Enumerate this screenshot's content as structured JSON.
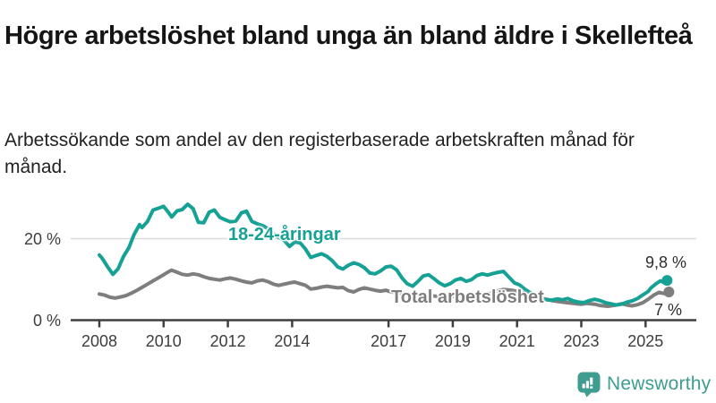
{
  "header": {
    "title": "Högre arbetslöshet bland unga än bland äldre i Skellefteå",
    "subtitle": "Arbetssökande som andel av den registerbaserade arbetskraften månad för månad."
  },
  "chart_data": {
    "type": "line",
    "unit": "%",
    "grid": "single horizontal gridline at 20 %",
    "legend_position": "inline labels on lines",
    "x_axis": {
      "ticks": [
        "2008",
        "2010",
        "2012",
        "2014",
        "2017",
        "2019",
        "2021",
        "2023",
        "2025"
      ],
      "range": [
        2007.1,
        2026.6
      ]
    },
    "y_axis": {
      "ticks": [
        {
          "value": 20,
          "label": "20 %"
        },
        {
          "value": 0,
          "label": "0 %"
        }
      ],
      "range": [
        0,
        30
      ]
    },
    "series": [
      {
        "name": "Total arbetslöshet",
        "color": "#7e7e7e",
        "end_label": "7 %",
        "end_value": 7.0,
        "points": [
          [
            2008.0,
            6.5
          ],
          [
            2008.17,
            6.2
          ],
          [
            2008.33,
            5.7
          ],
          [
            2008.5,
            5.5
          ],
          [
            2008.67,
            5.8
          ],
          [
            2008.83,
            6.1
          ],
          [
            2009.0,
            6.7
          ],
          [
            2009.17,
            7.4
          ],
          [
            2009.33,
            8.1
          ],
          [
            2009.5,
            8.9
          ],
          [
            2009.67,
            9.7
          ],
          [
            2009.83,
            10.4
          ],
          [
            2010.0,
            11.2
          ],
          [
            2010.17,
            12.0
          ],
          [
            2010.25,
            12.3
          ],
          [
            2010.42,
            11.8
          ],
          [
            2010.58,
            11.3
          ],
          [
            2010.75,
            11.1
          ],
          [
            2010.92,
            11.4
          ],
          [
            2011.08,
            11.2
          ],
          [
            2011.25,
            10.7
          ],
          [
            2011.42,
            10.3
          ],
          [
            2011.58,
            10.1
          ],
          [
            2011.75,
            9.9
          ],
          [
            2011.92,
            10.2
          ],
          [
            2012.08,
            10.4
          ],
          [
            2012.25,
            10.1
          ],
          [
            2012.42,
            9.7
          ],
          [
            2012.58,
            9.4
          ],
          [
            2012.75,
            9.2
          ],
          [
            2012.92,
            9.7
          ],
          [
            2013.08,
            9.9
          ],
          [
            2013.25,
            9.5
          ],
          [
            2013.42,
            8.9
          ],
          [
            2013.58,
            8.6
          ],
          [
            2013.75,
            8.9
          ],
          [
            2013.92,
            9.2
          ],
          [
            2014.08,
            9.4
          ],
          [
            2014.25,
            9.0
          ],
          [
            2014.42,
            8.6
          ],
          [
            2014.58,
            7.7
          ],
          [
            2014.75,
            7.9
          ],
          [
            2014.92,
            8.2
          ],
          [
            2015.08,
            8.4
          ],
          [
            2015.25,
            8.2
          ],
          [
            2015.42,
            8.0
          ],
          [
            2015.58,
            8.1
          ],
          [
            2015.75,
            7.3
          ],
          [
            2015.92,
            7.0
          ],
          [
            2016.08,
            7.6
          ],
          [
            2016.25,
            8.0
          ],
          [
            2016.42,
            7.7
          ],
          [
            2016.58,
            7.4
          ],
          [
            2016.75,
            7.2
          ],
          [
            2016.92,
            7.4
          ],
          [
            2017.08,
            7.0
          ],
          [
            2017.33,
            6.7
          ],
          [
            2017.58,
            6.4
          ],
          [
            2017.83,
            6.3
          ],
          [
            2018.08,
            6.4
          ],
          [
            2018.42,
            6.0
          ],
          [
            2018.75,
            5.8
          ],
          [
            2019.08,
            5.9
          ],
          [
            2019.42,
            5.7
          ],
          [
            2019.75,
            5.9
          ],
          [
            2020.08,
            6.4
          ],
          [
            2020.33,
            7.1
          ],
          [
            2020.58,
            7.6
          ],
          [
            2020.83,
            7.4
          ],
          [
            2021.08,
            7.0
          ],
          [
            2021.42,
            6.2
          ],
          [
            2021.75,
            5.5
          ],
          [
            2022.08,
            4.9
          ],
          [
            2022.42,
            4.5
          ],
          [
            2022.75,
            4.2
          ],
          [
            2023.0,
            4.0
          ],
          [
            2023.17,
            4.2
          ],
          [
            2023.42,
            4.0
          ],
          [
            2023.58,
            3.7
          ],
          [
            2023.83,
            3.5
          ],
          [
            2024.08,
            3.8
          ],
          [
            2024.25,
            4.1
          ],
          [
            2024.42,
            3.8
          ],
          [
            2024.58,
            3.6
          ],
          [
            2024.75,
            3.9
          ],
          [
            2024.92,
            4.4
          ],
          [
            2025.08,
            5.2
          ],
          [
            2025.25,
            6.2
          ],
          [
            2025.42,
            6.9
          ],
          [
            2025.58,
            6.6
          ],
          [
            2025.67,
            7.0
          ]
        ]
      },
      {
        "name": "18-24-åringar",
        "color": "#16a195",
        "end_label": "9,8 %",
        "end_value": 9.8,
        "points": [
          [
            2008.0,
            16.0
          ],
          [
            2008.08,
            15.3
          ],
          [
            2008.25,
            13.2
          ],
          [
            2008.42,
            11.3
          ],
          [
            2008.58,
            12.6
          ],
          [
            2008.75,
            15.6
          ],
          [
            2008.92,
            17.8
          ],
          [
            2009.08,
            21.0
          ],
          [
            2009.25,
            23.4
          ],
          [
            2009.33,
            22.7
          ],
          [
            2009.5,
            24.2
          ],
          [
            2009.67,
            27.0
          ],
          [
            2009.83,
            27.4
          ],
          [
            2010.0,
            27.9
          ],
          [
            2010.17,
            26.2
          ],
          [
            2010.25,
            25.3
          ],
          [
            2010.42,
            26.8
          ],
          [
            2010.58,
            27.1
          ],
          [
            2010.75,
            28.4
          ],
          [
            2010.92,
            27.3
          ],
          [
            2011.08,
            24.0
          ],
          [
            2011.25,
            23.9
          ],
          [
            2011.42,
            26.5
          ],
          [
            2011.58,
            27.0
          ],
          [
            2011.75,
            25.2
          ],
          [
            2011.92,
            24.6
          ],
          [
            2012.08,
            24.1
          ],
          [
            2012.25,
            24.3
          ],
          [
            2012.42,
            26.3
          ],
          [
            2012.58,
            26.7
          ],
          [
            2012.75,
            24.2
          ],
          [
            2012.92,
            23.6
          ],
          [
            2013.08,
            23.2
          ],
          [
            2013.25,
            22.4
          ],
          [
            2013.42,
            21.2
          ],
          [
            2013.58,
            20.3
          ],
          [
            2013.75,
            19.6
          ],
          [
            2013.92,
            18.1
          ],
          [
            2014.08,
            19.2
          ],
          [
            2014.25,
            19.0
          ],
          [
            2014.42,
            17.4
          ],
          [
            2014.58,
            15.4
          ],
          [
            2014.75,
            15.9
          ],
          [
            2014.92,
            16.3
          ],
          [
            2015.08,
            15.7
          ],
          [
            2015.25,
            14.6
          ],
          [
            2015.42,
            13.1
          ],
          [
            2015.58,
            12.6
          ],
          [
            2015.75,
            13.5
          ],
          [
            2015.92,
            14.1
          ],
          [
            2016.08,
            13.7
          ],
          [
            2016.25,
            12.9
          ],
          [
            2016.42,
            11.6
          ],
          [
            2016.58,
            11.4
          ],
          [
            2016.75,
            12.1
          ],
          [
            2016.92,
            13.1
          ],
          [
            2017.08,
            13.3
          ],
          [
            2017.25,
            12.4
          ],
          [
            2017.42,
            10.4
          ],
          [
            2017.58,
            9.0
          ],
          [
            2017.75,
            8.4
          ],
          [
            2017.92,
            9.6
          ],
          [
            2018.08,
            10.9
          ],
          [
            2018.25,
            11.2
          ],
          [
            2018.42,
            10.2
          ],
          [
            2018.58,
            9.2
          ],
          [
            2018.75,
            8.5
          ],
          [
            2018.92,
            9.0
          ],
          [
            2019.08,
            9.9
          ],
          [
            2019.25,
            10.3
          ],
          [
            2019.42,
            9.6
          ],
          [
            2019.58,
            10.0
          ],
          [
            2019.75,
            11.0
          ],
          [
            2019.92,
            11.4
          ],
          [
            2020.08,
            11.1
          ],
          [
            2020.25,
            11.5
          ],
          [
            2020.42,
            11.8
          ],
          [
            2020.58,
            12.0
          ],
          [
            2020.75,
            10.6
          ],
          [
            2020.92,
            9.2
          ],
          [
            2021.08,
            8.7
          ],
          [
            2021.25,
            7.6
          ],
          [
            2021.42,
            6.8
          ],
          [
            2021.58,
            6.0
          ],
          [
            2021.75,
            5.3
          ],
          [
            2021.92,
            5.1
          ],
          [
            2022.08,
            5.0
          ],
          [
            2022.25,
            5.3
          ],
          [
            2022.42,
            5.1
          ],
          [
            2022.58,
            5.4
          ],
          [
            2022.75,
            4.8
          ],
          [
            2022.92,
            4.5
          ],
          [
            2023.08,
            4.4
          ],
          [
            2023.25,
            4.9
          ],
          [
            2023.42,
            5.2
          ],
          [
            2023.58,
            4.9
          ],
          [
            2023.75,
            4.4
          ],
          [
            2023.92,
            4.1
          ],
          [
            2024.08,
            3.8
          ],
          [
            2024.25,
            4.0
          ],
          [
            2024.42,
            4.5
          ],
          [
            2024.58,
            4.8
          ],
          [
            2024.75,
            5.4
          ],
          [
            2024.92,
            6.3
          ],
          [
            2025.08,
            7.1
          ],
          [
            2025.17,
            8.0
          ],
          [
            2025.33,
            9.0
          ],
          [
            2025.46,
            9.7
          ],
          [
            2025.58,
            9.3
          ],
          [
            2025.67,
            9.8
          ]
        ]
      }
    ],
    "colors": {
      "axis": "#3f3f3f",
      "gridline": "#dbdbdb",
      "tick_text": "#3d3d3d",
      "annotation_text": "#2e2e2e"
    }
  },
  "footer": {
    "brand": "Newsworthy",
    "brand_color": "#3f9c90"
  }
}
